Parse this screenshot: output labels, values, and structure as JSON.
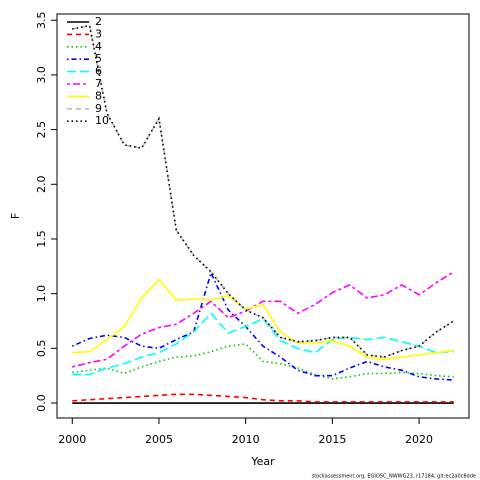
{
  "chart_data": {
    "type": "line",
    "x_label": "Year",
    "y_label": "F",
    "footnote": "stockassessment.org, EGIOSC_NWWG23, r17184, git:ec2a0c8dde",
    "x": [
      2000,
      2001,
      2002,
      2003,
      2004,
      2005,
      2006,
      2007,
      2008,
      2009,
      2010,
      2011,
      2012,
      2013,
      2014,
      2015,
      2016,
      2017,
      2018,
      2019,
      2020,
      2021,
      2022
    ],
    "xlim": [
      1999.12,
      2022.88
    ],
    "xticks": [
      2000,
      2005,
      2010,
      2015,
      2020
    ],
    "ylim": [
      -0.137,
      3.557
    ],
    "yticks": [
      {
        "value": 0,
        "label": "0.0"
      },
      0.5,
      {
        "value": 1,
        "label": "1.0"
      },
      1.5,
      {
        "value": 2,
        "label": "2.0"
      },
      2.5,
      {
        "value": 3,
        "label": "3.0"
      },
      3.5
    ],
    "legend": "topleft",
    "series": [
      {
        "name": "2",
        "color": "#000000",
        "dash": "solid",
        "values": [
          0,
          0,
          0,
          0,
          0,
          0,
          0,
          0,
          0,
          0,
          0,
          0,
          0,
          0,
          0,
          0,
          0,
          0,
          0,
          0,
          0,
          0,
          0
        ]
      },
      {
        "name": "3",
        "color": "#ff0000",
        "dash": "dashed",
        "values": [
          0.02,
          0.03,
          0.04,
          0.05,
          0.06,
          0.07,
          0.08,
          0.08,
          0.07,
          0.06,
          0.05,
          0.03,
          0.02,
          0.02,
          0.01,
          0.01,
          0.01,
          0.01,
          0.01,
          0.01,
          0.01,
          0.01,
          0.01
        ]
      },
      {
        "name": "4",
        "color": "#00cd00",
        "dash": "dotted",
        "values": [
          0.28,
          0.3,
          0.32,
          0.27,
          0.33,
          0.38,
          0.42,
          0.43,
          0.47,
          0.52,
          0.54,
          0.38,
          0.36,
          0.32,
          0.26,
          0.22,
          0.24,
          0.27,
          0.27,
          0.28,
          0.27,
          0.25,
          0.24
        ]
      },
      {
        "name": "5",
        "color": "#0000ff",
        "dash": "dotdash",
        "values": [
          0.52,
          0.59,
          0.62,
          0.6,
          0.52,
          0.5,
          0.58,
          0.65,
          1.19,
          0.85,
          0.7,
          0.52,
          0.42,
          0.3,
          0.25,
          0.25,
          0.32,
          0.38,
          0.33,
          0.3,
          0.24,
          0.22,
          0.21
        ]
      },
      {
        "name": "6",
        "color": "#00ffff",
        "dash": "longdash",
        "values": [
          0.26,
          0.26,
          0.32,
          0.36,
          0.42,
          0.46,
          0.54,
          0.65,
          0.82,
          0.64,
          0.7,
          0.77,
          0.57,
          0.5,
          0.46,
          0.58,
          0.6,
          0.58,
          0.6,
          0.56,
          0.52,
          0.46,
          0.47
        ]
      },
      {
        "name": "7",
        "color": "#ff00ff",
        "dash": "twodash",
        "values": [
          0.33,
          0.37,
          0.4,
          0.52,
          0.63,
          0.69,
          0.72,
          0.82,
          0.93,
          0.78,
          0.84,
          0.93,
          0.93,
          0.82,
          0.9,
          1.01,
          1.08,
          0.96,
          0.99,
          1.08,
          0.99,
          1.1,
          1.2
        ]
      },
      {
        "name": "8",
        "color": "#ffff00",
        "dash": "solid",
        "values": [
          0.46,
          0.47,
          0.58,
          0.7,
          0.96,
          1.13,
          0.94,
          0.95,
          0.94,
          0.98,
          0.86,
          0.9,
          0.65,
          0.55,
          0.55,
          0.57,
          0.52,
          0.42,
          0.4,
          0.42,
          0.44,
          0.46,
          0.48
        ]
      },
      {
        "name": "9",
        "color": "#bebebe",
        "dash": "dashed",
        "values": [
          3.42,
          3.45,
          2.65,
          2.36,
          2.33,
          2.6,
          1.58,
          1.35,
          1.2,
          1.0,
          0.85,
          0.78,
          0.6,
          0.56,
          0.57,
          0.6,
          0.6,
          0.44,
          0.42,
          0.48,
          0.52,
          0.65,
          0.75
        ]
      },
      {
        "name": "10",
        "color": "#000000",
        "dash": "dotted",
        "values": [
          3.42,
          3.45,
          2.65,
          2.36,
          2.33,
          2.6,
          1.58,
          1.35,
          1.2,
          1.0,
          0.85,
          0.78,
          0.6,
          0.56,
          0.57,
          0.6,
          0.6,
          0.44,
          0.42,
          0.48,
          0.52,
          0.65,
          0.75
        ]
      }
    ]
  }
}
